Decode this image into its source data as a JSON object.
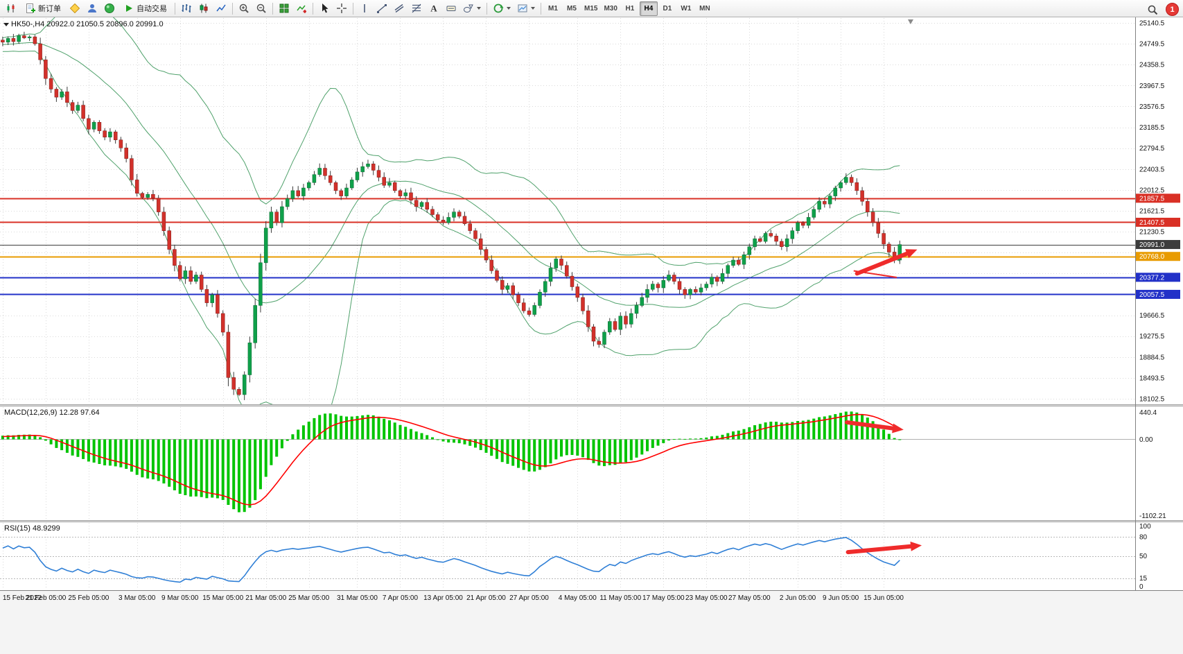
{
  "toolbar": {
    "new_order_label": "新订单",
    "autotrading_label": "自动交易",
    "timeframes": [
      "M1",
      "M5",
      "M15",
      "M30",
      "H1",
      "H4",
      "D1",
      "W1",
      "MN"
    ],
    "active_timeframe": "H4",
    "notification_count": "1",
    "icon_names": [
      "app-logo",
      "new-order",
      "market-watch",
      "data-window",
      "navigator",
      "autotrading-play",
      "bar-chart",
      "candlestick-chart",
      "line-chart",
      "zoom-in",
      "zoom-out",
      "tile-windows",
      "add-indicator",
      "cursor",
      "crosshair",
      "vertical-line",
      "trendline",
      "equidistant-channel",
      "fibonacci",
      "text-tool",
      "label-tool",
      "shapes",
      "cycles",
      "template",
      "search",
      "notification"
    ]
  },
  "price_panel": {
    "header": "HK50-,H4 20922.0 21050.5 20896.0 20991.0"
  },
  "macd_panel": {
    "header": "MACD(12,26,9) 12.28 97.64"
  },
  "rsi_panel": {
    "header": "RSI(15) 48.9299"
  },
  "chart_data": {
    "type": "candlestick",
    "symbol": "HK50-",
    "timeframe": "H4",
    "ohlc_display": {
      "open": 20922.0,
      "high": 21050.5,
      "low": 20896.0,
      "close": 20991.0
    },
    "y_axis": {
      "min": 18102.5,
      "max": 25140.5,
      "tick_step": 391.0,
      "tick_labels": [
        "25140.5",
        "24749.5",
        "24358.5",
        "23967.5",
        "23576.5",
        "23185.5",
        "22794.5",
        "22403.5",
        "22012.5",
        "21621.5",
        "21230.5",
        "20839.5",
        "20448.5",
        "20057.5",
        "19666.5",
        "19275.5",
        "18884.5",
        "18493.5",
        "18102.5"
      ]
    },
    "time_labels": [
      "15 Feb 2022",
      "21 Feb 05:00",
      "25 Feb 05:00",
      "3 Mar 05:00",
      "9 Mar 05:00",
      "15 Mar 05:00",
      "21 Mar 05:00",
      "25 Mar 05:00",
      "31 Mar 05:00",
      "7 Apr 05:00",
      "13 Apr 05:00",
      "21 Apr 05:00",
      "27 Apr 05:00",
      "4 May 05:00",
      "11 May 05:00",
      "17 May 05:00",
      "23 May 05:00",
      "27 May 05:00",
      "2 Jun 05:00",
      "9 Jun 05:00",
      "15 Jun 05:00"
    ],
    "data_width_frac": 0.795,
    "first_open": 24550,
    "warmup_closes": [
      24600,
      24700,
      24650,
      24760,
      24700,
      24780,
      24720,
      24800,
      24750,
      24820
    ],
    "closes": [
      24780,
      24850,
      24790,
      24900,
      24860,
      24880,
      24750,
      24450,
      24100,
      23900,
      23750,
      23850,
      23650,
      23500,
      23600,
      23350,
      23150,
      23280,
      23120,
      23000,
      23100,
      22950,
      22800,
      22600,
      22200,
      21950,
      21870,
      21930,
      21860,
      21600,
      21250,
      20900,
      20600,
      20350,
      20500,
      20300,
      20420,
      20150,
      19900,
      20050,
      19700,
      19350,
      18500,
      18280,
      18180,
      18550,
      19150,
      19850,
      20650,
      21300,
      21600,
      21400,
      21700,
      21850,
      22000,
      21900,
      22050,
      22150,
      22300,
      22420,
      22280,
      22150,
      22000,
      21900,
      22050,
      22200,
      22350,
      22450,
      22500,
      22380,
      22250,
      22100,
      22150,
      22000,
      21900,
      21960,
      21820,
      21700,
      21780,
      21650,
      21550,
      21450,
      21400,
      21500,
      21600,
      21520,
      21380,
      21250,
      21100,
      20900,
      20700,
      20500,
      20320,
      20150,
      20220,
      20050,
      19900,
      19750,
      19680,
      19850,
      20100,
      20300,
      20550,
      20720,
      20600,
      20400,
      20200,
      20000,
      19750,
      19450,
      19180,
      19120,
      19350,
      19550,
      19400,
      19650,
      19500,
      19700,
      19850,
      20000,
      20150,
      20250,
      20180,
      20320,
      20420,
      20300,
      20150,
      20050,
      20150,
      20100,
      20180,
      20250,
      20380,
      20300,
      20450,
      20600,
      20700,
      20620,
      20800,
      20950,
      21100,
      21050,
      21200,
      21150,
      21050,
      20950,
      21100,
      21250,
      21400,
      21350,
      21500,
      21650,
      21800,
      21750,
      21900,
      22050,
      22150,
      22250,
      22150,
      22000,
      21800,
      21600,
      21400,
      21200,
      21000,
      20850,
      20700,
      20991
    ],
    "horizontal_lines": [
      {
        "value": 21857.5,
        "color": "#d93025",
        "width": 2,
        "badge": "21857.5"
      },
      {
        "value": 21407.5,
        "color": "#d93025",
        "width": 2,
        "badge": "21407.5"
      },
      {
        "value": 20991.0,
        "color": "#3c3c3c",
        "width": 1,
        "badge": "20991.0"
      },
      {
        "value": 20768.0,
        "color": "#e89b00",
        "width": 2,
        "badge": "20768.0"
      },
      {
        "value": 20377.2,
        "color": "#2231c8",
        "width": 2,
        "badge": "20377.2"
      },
      {
        "value": 20057.5,
        "color": "#2231c8",
        "width": 2,
        "badge": "20057.5"
      }
    ],
    "bollinger": {
      "period": 20,
      "deviation": 2,
      "color": "#4fa16b"
    },
    "macd": {
      "label": "MACD(12,26,9)",
      "value_main": "12.28",
      "value_signal": "97.64",
      "fast": 12,
      "slow": 26,
      "signal": 9,
      "axis_labels": [
        "440.4",
        "0.00",
        "-1102.21"
      ],
      "bar_color": "#00c400",
      "line_color": "#ff0000"
    },
    "rsi": {
      "label": "RSI(15)",
      "value": "48.9299",
      "period": 15,
      "levels": [
        80,
        50,
        15
      ],
      "axis_labels": [
        "100",
        "80",
        "50",
        "15",
        "0"
      ],
      "line_color": "#2f7fd6"
    },
    "candle_colors": {
      "up": "#0fa04a",
      "down": "#d2312b",
      "wick": "#3a3a3a",
      "up_border": "#0a6b33",
      "down_border": "#801d1a"
    },
    "annotation_color": "#ef2b2b",
    "annotations": [
      {
        "panel": "price",
        "type": "line",
        "x1": 0.752,
        "y1": 0.655,
        "x2": 0.79,
        "y2": 0.672
      },
      {
        "panel": "price",
        "type": "arrow",
        "x1": 0.755,
        "y1": 0.662,
        "x2": 0.808,
        "y2": 0.6
      },
      {
        "panel": "macd",
        "type": "arrow",
        "x1": 0.746,
        "y1": 0.14,
        "x2": 0.796,
        "y2": 0.205
      },
      {
        "panel": "rsi",
        "type": "arrow",
        "x1": 0.747,
        "y1": 0.44,
        "x2": 0.812,
        "y2": 0.34
      }
    ]
  }
}
